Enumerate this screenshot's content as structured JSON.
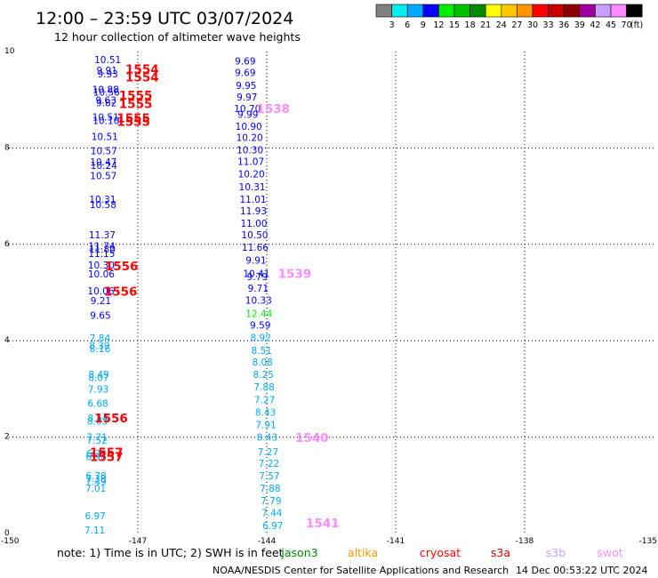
{
  "header": {
    "title": "12:00 – 23:59 UTC 03/07/2024",
    "subtitle": "12 hour collection of altimeter wave heights"
  },
  "colorbar": {
    "labels": [
      "3",
      "6",
      "9",
      "12",
      "15",
      "18",
      "21",
      "24",
      "27",
      "30",
      "33",
      "36",
      "39",
      "42",
      "45",
      "70"
    ],
    "unit": "(ft)",
    "colors": [
      "#808080",
      "#00eeee",
      "#00a8ff",
      "#0000ff",
      "#00ee00",
      "#00c000",
      "#008800",
      "#ffff00",
      "#ffc800",
      "#ff9600",
      "#ff0000",
      "#c80000",
      "#8b0000",
      "#a000a0",
      "#c8a0ff",
      "#ff8cff",
      "#000000"
    ]
  },
  "note": {
    "text": "note:  1) Time is in UTC; 2) SWH is in feet"
  },
  "satellites": [
    {
      "name": "jason3",
      "color": "#008800"
    },
    {
      "name": "altika",
      "color": "#ff9600"
    },
    {
      "name": "cryosat",
      "color": "#ff0000"
    },
    {
      "name": "s3a",
      "color": "#c80000"
    },
    {
      "name": "s3b",
      "color": "#c8a0ff"
    },
    {
      "name": "swot",
      "color": "#ff8cff"
    }
  ],
  "footer": {
    "source": "NOAA/NESDIS Center for Satellite Applications and Research",
    "timestamp": "14 Dec 00:53:22 UTC 2024"
  },
  "chart_data": {
    "type": "scatter",
    "xlim": [
      -150,
      -135
    ],
    "ylim": [
      0,
      10
    ],
    "x_ticks": [
      "-150",
      "-147",
      "-144",
      "-141",
      "-138",
      "-135"
    ],
    "y_ticks": [
      "0",
      "2",
      "4",
      "6",
      "8",
      "10"
    ],
    "grid": true,
    "swh_points": [
      {
        "x": -147.7,
        "y": 9.83,
        "label": "10.51",
        "color": "#0000ff"
      },
      {
        "x": -147.72,
        "y": 9.61,
        "label": "9.91",
        "color": "#0000ff"
      },
      {
        "x": -147.7,
        "y": 9.54,
        "label": "9.93",
        "color": "#0000ff"
      },
      {
        "x": -147.75,
        "y": 9.22,
        "label": "10.88",
        "color": "#0000ff"
      },
      {
        "x": -147.73,
        "y": 9.16,
        "label": "10.56",
        "color": "#0000ff"
      },
      {
        "x": -147.74,
        "y": 8.99,
        "label": "9.63",
        "color": "#0000ff"
      },
      {
        "x": -147.73,
        "y": 8.94,
        "label": "9.82",
        "color": "#0000ff"
      },
      {
        "x": -147.75,
        "y": 8.64,
        "label": "10.51",
        "color": "#0000ff"
      },
      {
        "x": -147.74,
        "y": 8.57,
        "label": "10.10",
        "color": "#0000ff"
      },
      {
        "x": -147.77,
        "y": 8.24,
        "label": "10.51",
        "color": "#0000ff"
      },
      {
        "x": -147.79,
        "y": 7.94,
        "label": "10.57",
        "color": "#0000ff"
      },
      {
        "x": -147.8,
        "y": 7.71,
        "label": "10.47",
        "color": "#0000ff"
      },
      {
        "x": -147.79,
        "y": 7.64,
        "label": "10.24",
        "color": "#0000ff"
      },
      {
        "x": -147.8,
        "y": 7.43,
        "label": "10.57",
        "color": "#0000ff"
      },
      {
        "x": -147.82,
        "y": 6.94,
        "label": "10.31",
        "color": "#0000ff"
      },
      {
        "x": -147.81,
        "y": 6.83,
        "label": "10.58",
        "color": "#0000ff"
      },
      {
        "x": -147.83,
        "y": 6.2,
        "label": "11.37",
        "color": "#0000ff"
      },
      {
        "x": -147.84,
        "y": 5.97,
        "label": "11.74",
        "color": "#0000ff"
      },
      {
        "x": -147.83,
        "y": 5.9,
        "label": "11.80",
        "color": "#0000ff"
      },
      {
        "x": -147.84,
        "y": 5.81,
        "label": "11.15",
        "color": "#0000ff"
      },
      {
        "x": -147.85,
        "y": 5.57,
        "label": "10.30",
        "color": "#0000ff"
      },
      {
        "x": -147.85,
        "y": 5.39,
        "label": "10.06",
        "color": "#0000ff"
      },
      {
        "x": -147.86,
        "y": 5.04,
        "label": "10.06",
        "color": "#0000ff"
      },
      {
        "x": -147.86,
        "y": 4.83,
        "label": "9.21",
        "color": "#0000ff"
      },
      {
        "x": -147.87,
        "y": 4.53,
        "label": "9.65",
        "color": "#0000ff"
      },
      {
        "x": -147.88,
        "y": 4.06,
        "label": "7.84",
        "color": "#00a8ff"
      },
      {
        "x": -147.89,
        "y": 3.9,
        "label": "8.39",
        "color": "#00a8ff"
      },
      {
        "x": -147.88,
        "y": 3.84,
        "label": "8.16",
        "color": "#00a8ff"
      },
      {
        "x": -147.91,
        "y": 3.3,
        "label": "8.49",
        "color": "#00a8ff"
      },
      {
        "x": -147.91,
        "y": 3.24,
        "label": "8.07",
        "color": "#00a8ff"
      },
      {
        "x": -147.92,
        "y": 3.0,
        "label": "7.93",
        "color": "#00a8ff"
      },
      {
        "x": -147.93,
        "y": 2.7,
        "label": "6.68",
        "color": "#00a8ff"
      },
      {
        "x": -147.93,
        "y": 2.4,
        "label": "8.54",
        "color": "#00a8ff"
      },
      {
        "x": -147.94,
        "y": 2.33,
        "label": "8.03",
        "color": "#00a8ff"
      },
      {
        "x": -147.95,
        "y": 2.0,
        "label": "7.71",
        "color": "#00a8ff"
      },
      {
        "x": -147.95,
        "y": 1.94,
        "label": "7.52",
        "color": "#00a8ff"
      },
      {
        "x": -147.96,
        "y": 1.66,
        "label": "6.72",
        "color": "#00a8ff"
      },
      {
        "x": -147.97,
        "y": 1.6,
        "label": "6.96",
        "color": "#00a8ff"
      },
      {
        "x": -147.97,
        "y": 1.2,
        "label": "6.78",
        "color": "#00a8ff"
      },
      {
        "x": -147.98,
        "y": 1.14,
        "label": "7.38",
        "color": "#00a8ff"
      },
      {
        "x": -147.97,
        "y": 1.08,
        "label": "7.49",
        "color": "#00a8ff"
      },
      {
        "x": -147.98,
        "y": 0.94,
        "label": "7.01",
        "color": "#00a8ff"
      },
      {
        "x": -147.99,
        "y": 0.37,
        "label": "6.97",
        "color": "#00a8ff"
      },
      {
        "x": -148.0,
        "y": 0.07,
        "label": "7.11",
        "color": "#00a8ff"
      },
      {
        "x": -144.5,
        "y": 9.81,
        "label": "9.69",
        "color": "#0000ff"
      },
      {
        "x": -144.5,
        "y": 9.57,
        "label": "9.69",
        "color": "#0000ff"
      },
      {
        "x": -144.48,
        "y": 9.3,
        "label": "9.95",
        "color": "#0000ff"
      },
      {
        "x": -144.46,
        "y": 9.06,
        "label": "9.97",
        "color": "#0000ff"
      },
      {
        "x": -144.45,
        "y": 8.82,
        "label": "10.70",
        "color": "#0000ff"
      },
      {
        "x": -144.44,
        "y": 8.7,
        "label": "9.99",
        "color": "#0000ff"
      },
      {
        "x": -144.42,
        "y": 8.45,
        "label": "10.90",
        "color": "#0000ff"
      },
      {
        "x": -144.4,
        "y": 8.22,
        "label": "10.20",
        "color": "#0000ff"
      },
      {
        "x": -144.39,
        "y": 7.96,
        "label": "10.30",
        "color": "#0000ff"
      },
      {
        "x": -144.37,
        "y": 7.72,
        "label": "11.07",
        "color": "#0000ff"
      },
      {
        "x": -144.36,
        "y": 7.46,
        "label": "10.20",
        "color": "#0000ff"
      },
      {
        "x": -144.34,
        "y": 7.2,
        "label": "10.31",
        "color": "#0000ff"
      },
      {
        "x": -144.32,
        "y": 6.94,
        "label": "11.01",
        "color": "#0000ff"
      },
      {
        "x": -144.31,
        "y": 6.7,
        "label": "11.93",
        "color": "#0000ff"
      },
      {
        "x": -144.3,
        "y": 6.44,
        "label": "11.00",
        "color": "#0000ff"
      },
      {
        "x": -144.28,
        "y": 6.2,
        "label": "10.50",
        "color": "#0000ff"
      },
      {
        "x": -144.27,
        "y": 5.94,
        "label": "11.66",
        "color": "#0000ff"
      },
      {
        "x": -144.25,
        "y": 5.67,
        "label": "9.91",
        "color": "#0000ff"
      },
      {
        "x": -144.24,
        "y": 5.4,
        "label": "10.41",
        "color": "#0000ff"
      },
      {
        "x": -144.22,
        "y": 5.33,
        "label": "9.79",
        "color": "#0000ff"
      },
      {
        "x": -144.2,
        "y": 5.09,
        "label": "9.71",
        "color": "#0000ff"
      },
      {
        "x": -144.19,
        "y": 4.84,
        "label": "10.33",
        "color": "#0000ff"
      },
      {
        "x": -144.18,
        "y": 4.57,
        "label": "12.44",
        "color": "#00ee00"
      },
      {
        "x": -144.15,
        "y": 4.33,
        "label": "9.59",
        "color": "#0000ff"
      },
      {
        "x": -144.14,
        "y": 4.07,
        "label": "8.92",
        "color": "#00a8ff"
      },
      {
        "x": -144.12,
        "y": 3.8,
        "label": "8.51",
        "color": "#00a8ff"
      },
      {
        "x": -144.1,
        "y": 3.56,
        "label": "8.08",
        "color": "#00a8ff"
      },
      {
        "x": -144.08,
        "y": 3.3,
        "label": "8.25",
        "color": "#00a8ff"
      },
      {
        "x": -144.06,
        "y": 3.04,
        "label": "7.88",
        "color": "#00a8ff"
      },
      {
        "x": -144.05,
        "y": 2.78,
        "label": "7.27",
        "color": "#00a8ff"
      },
      {
        "x": -144.03,
        "y": 2.52,
        "label": "8.43",
        "color": "#00a8ff"
      },
      {
        "x": -144.02,
        "y": 2.26,
        "label": "7.91",
        "color": "#00a8ff"
      },
      {
        "x": -143.99,
        "y": 2.0,
        "label": "8.43",
        "color": "#00a8ff"
      },
      {
        "x": -143.97,
        "y": 1.7,
        "label": "7.27",
        "color": "#00a8ff"
      },
      {
        "x": -143.95,
        "y": 1.46,
        "label": "7.22",
        "color": "#00a8ff"
      },
      {
        "x": -143.94,
        "y": 1.2,
        "label": "7.57",
        "color": "#00a8ff"
      },
      {
        "x": -143.92,
        "y": 0.94,
        "label": "7.88",
        "color": "#00a8ff"
      },
      {
        "x": -143.9,
        "y": 0.68,
        "label": "7.79",
        "color": "#00a8ff"
      },
      {
        "x": -143.88,
        "y": 0.43,
        "label": "7.44",
        "color": "#00a8ff"
      },
      {
        "x": -143.86,
        "y": 0.17,
        "label": "6.97",
        "color": "#00a8ff"
      }
    ],
    "orbit_labels": [
      {
        "x": -146.9,
        "y": 9.64,
        "label": "1554",
        "color": "#ff0000"
      },
      {
        "x": -146.9,
        "y": 9.47,
        "label": "1554",
        "color": "#ff0000"
      },
      {
        "x": -147.05,
        "y": 9.1,
        "label": "1555",
        "color": "#ff0000"
      },
      {
        "x": -147.05,
        "y": 8.92,
        "label": "1555",
        "color": "#ff0000"
      },
      {
        "x": -147.1,
        "y": 8.63,
        "label": "1555",
        "color": "#ff0000"
      },
      {
        "x": -147.1,
        "y": 8.55,
        "label": "1555",
        "color": "#ff0000"
      },
      {
        "x": -147.38,
        "y": 5.55,
        "label": "1556",
        "color": "#ff0000"
      },
      {
        "x": -147.4,
        "y": 5.03,
        "label": "1556",
        "color": "#ff0000"
      },
      {
        "x": -147.62,
        "y": 2.4,
        "label": "1556",
        "color": "#ff0000"
      },
      {
        "x": -147.73,
        "y": 1.69,
        "label": "1557",
        "color": "#ff0000"
      },
      {
        "x": -147.73,
        "y": 1.6,
        "label": "1557",
        "color": "#ff0000"
      },
      {
        "x": -143.85,
        "y": 8.82,
        "label": "1538",
        "color": "#ff8cff"
      },
      {
        "x": -143.35,
        "y": 5.4,
        "label": "1539",
        "color": "#ff8cff"
      },
      {
        "x": -142.95,
        "y": 1.99,
        "label": "1540",
        "color": "#ff8cff"
      },
      {
        "x": -142.7,
        "y": 0.22,
        "label": "1541",
        "color": "#ff8cff"
      }
    ]
  }
}
